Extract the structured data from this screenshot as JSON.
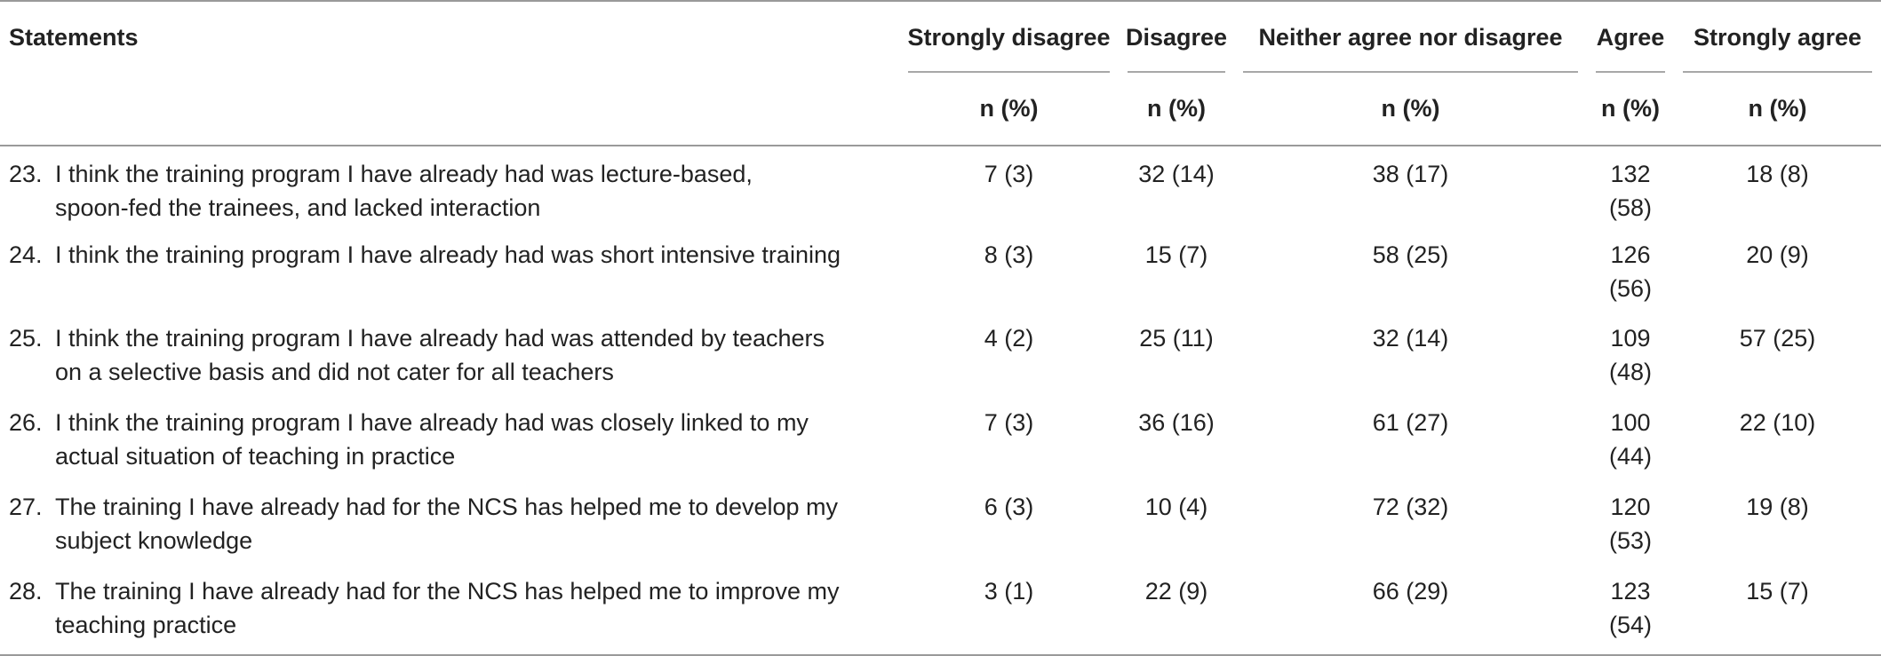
{
  "header": {
    "statements_label": "Statements",
    "columns": [
      "Strongly disagree",
      "Disagree",
      "Neither agree nor disagree",
      "Agree",
      "Strongly agree"
    ],
    "subheader": "n (%)"
  },
  "rows": [
    {
      "num": "23.",
      "statement_lines": [
        "I think the training program I have already had was lecture-based,",
        "spoon-fed the trainees, and lacked interaction"
      ],
      "values": [
        "7 (3)",
        "32 (14)",
        "38 (17)",
        "132 (58)",
        "18 (8)"
      ]
    },
    {
      "num": "24.",
      "statement_lines": [
        "I think the training program I have already had was short intensive training"
      ],
      "values": [
        "8 (3)",
        "15 (7)",
        "58 (25)",
        "126 (56)",
        "20 (9)"
      ]
    },
    {
      "num": "25.",
      "statement_lines": [
        "I think the training program I have already had was attended by teachers",
        "on a selective basis and did not cater for all teachers"
      ],
      "values": [
        "4 (2)",
        "25 (11)",
        "32 (14)",
        "109 (48)",
        "57 (25)"
      ]
    },
    {
      "num": "26.",
      "statement_lines": [
        "I think the training program I have already had was closely linked to my",
        "actual situation of teaching in practice"
      ],
      "values": [
        "7 (3)",
        "36 (16)",
        "61 (27)",
        "100 (44)",
        "22 (10)"
      ]
    },
    {
      "num": "27.",
      "statement_lines": [
        "The training I have already had for the NCS has helped me to develop my",
        "subject knowledge"
      ],
      "values": [
        "6 (3)",
        "10 (4)",
        "72 (32)",
        "120 (53)",
        "19 (8)"
      ]
    },
    {
      "num": "28.",
      "statement_lines": [
        "The training I have already had for the NCS has helped me to improve my",
        "teaching practice"
      ],
      "values": [
        "3 (1)",
        "22 (9)",
        "66 (29)",
        "123 (54)",
        "15 (7)"
      ]
    }
  ]
}
